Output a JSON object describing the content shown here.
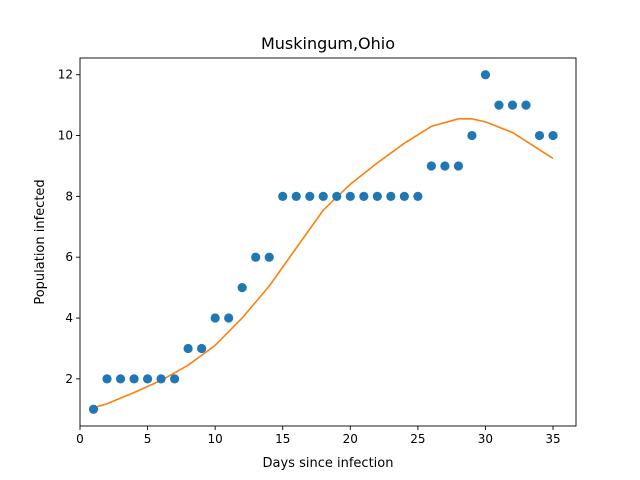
{
  "chart_data": {
    "type": "scatter",
    "title": "Muskingum,Ohio",
    "xlabel": "Days since infection",
    "ylabel": "Population infected",
    "xlim": [
      0,
      36.7
    ],
    "ylim": [
      0.45,
      12.55
    ],
    "xticks": [
      0,
      5,
      10,
      15,
      20,
      25,
      30,
      35
    ],
    "yticks": [
      2,
      4,
      6,
      8,
      10,
      12
    ],
    "grid": false,
    "colors": {
      "points": "#1f77b4",
      "fit": "#ff7f0e"
    },
    "series": [
      {
        "type": "scatter",
        "x": [
          1,
          2,
          3,
          4,
          5,
          6,
          7,
          8,
          9,
          10,
          11,
          12,
          13,
          14,
          15,
          16,
          17,
          18,
          19,
          20,
          21,
          22,
          23,
          24,
          25,
          26,
          27,
          28,
          29,
          30,
          31,
          32,
          33,
          34,
          35
        ],
        "y": [
          1,
          2,
          2,
          2,
          2,
          2,
          2,
          3,
          3,
          4,
          4,
          5,
          6,
          6,
          8,
          8,
          8,
          8,
          8,
          8,
          8,
          8,
          8,
          8,
          8,
          9,
          9,
          9,
          10,
          12,
          11,
          11,
          11,
          10,
          10
        ]
      },
      {
        "type": "line",
        "x": [
          1,
          2,
          4,
          6,
          8,
          10,
          12,
          14,
          16,
          18,
          20,
          22,
          24,
          26,
          28,
          29,
          30,
          32,
          35
        ],
        "y": [
          1.05,
          1.18,
          1.55,
          1.95,
          2.45,
          3.1,
          4.0,
          5.05,
          6.3,
          7.55,
          8.4,
          9.1,
          9.75,
          10.3,
          10.55,
          10.55,
          10.45,
          10.1,
          9.25
        ]
      }
    ]
  }
}
